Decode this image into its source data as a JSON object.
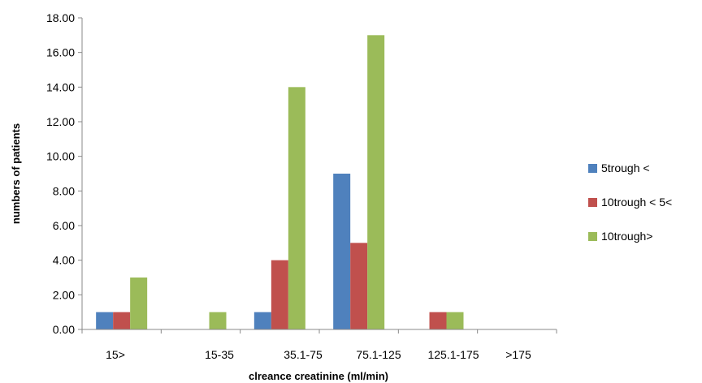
{
  "chart_data": {
    "type": "bar",
    "title": "",
    "xlabel": "clreance creatinine (ml/min)",
    "ylabel": "numbers of patients",
    "categories": [
      "15>",
      "15-35",
      "35.1-75",
      "75.1-125",
      "125.1-175",
      ">175"
    ],
    "series": [
      {
        "name": "5trough <",
        "color": "#4f81bd",
        "values": [
          1,
          0,
          1,
          9,
          0,
          0
        ]
      },
      {
        "name": "10trough < 5<",
        "color": "#c0504d",
        "values": [
          1,
          0,
          4,
          5,
          1,
          0
        ]
      },
      {
        "name": "10trough>",
        "color": "#9bbb59",
        "values": [
          3,
          1,
          14,
          17,
          1,
          0
        ]
      }
    ],
    "yticks": [
      "0.00",
      "2.00",
      "4.00",
      "6.00",
      "8.00",
      "10.00",
      "12.00",
      "14.00",
      "16.00",
      "18.00"
    ],
    "ylim": [
      0,
      18
    ],
    "grid": false,
    "legend_position": "right"
  }
}
